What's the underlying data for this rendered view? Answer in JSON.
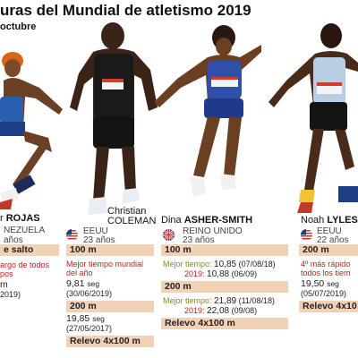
{
  "header": {
    "title": "uras del Mundial de atletismo 2019",
    "subtitle": "octubre"
  },
  "athletes": [
    {
      "name_first": "r",
      "name_last": "ROJAS",
      "country": "NEZUELA",
      "age": "años",
      "event_band": "e salto",
      "note1": "argo de todos",
      "note2": "pos",
      "mark": "m",
      "date": "2019)"
    },
    {
      "name_first": "Christian",
      "name_last": "COLEMAN",
      "country": "EEUU",
      "age": "23 años",
      "bib": "COLEMAN",
      "event1": "100 m",
      "note1": "Mejor tiempo mundial",
      "note2": "del año",
      "mark1": "9,81",
      "unit1": "seg",
      "date1": "(30/06/2019)",
      "event2": "200 m",
      "mark2": "19,85",
      "unit2": "seg",
      "date2": "(27/05/2017)",
      "event3": "Relevo 4x100 m"
    },
    {
      "name_first": "Dina",
      "name_last": "ASHER-SMITH",
      "country": "REINO UNIDO",
      "age": "23 años",
      "bib": "ASHER-SMITH",
      "event1": "100 m",
      "best_label": "Mejor tiempo:",
      "best1_a": "10,85",
      "best1_a_date": "(07/08/18)",
      "best1_b_year": "2019:",
      "best1_b": "10,88",
      "best1_b_date": "(06/09)",
      "event2": "200 m",
      "best2_label": "Mejor tiempo:",
      "best2_a": "21,89",
      "best2_a_date": "(11/08/18)",
      "best2_b_year": "2019:",
      "best2_b": "22,08",
      "best2_b_date": "(09/08)",
      "event3": "Relevo 4x100 m"
    },
    {
      "name_first": "Noah",
      "name_last": "LYLES",
      "country": "EEUU",
      "age": "22 años",
      "bib": "LYLES",
      "event1": "200 m",
      "note1": "4º más rápido",
      "note2": "todos los tiem",
      "mark1": "19,50",
      "unit1": "seg",
      "date1": "(05/07/2019)",
      "event3": "Relevo 4x10"
    }
  ],
  "colors": {
    "band": "#f2d2b6",
    "note_red": "#b3261e",
    "note_green": "#7a8d2e"
  }
}
